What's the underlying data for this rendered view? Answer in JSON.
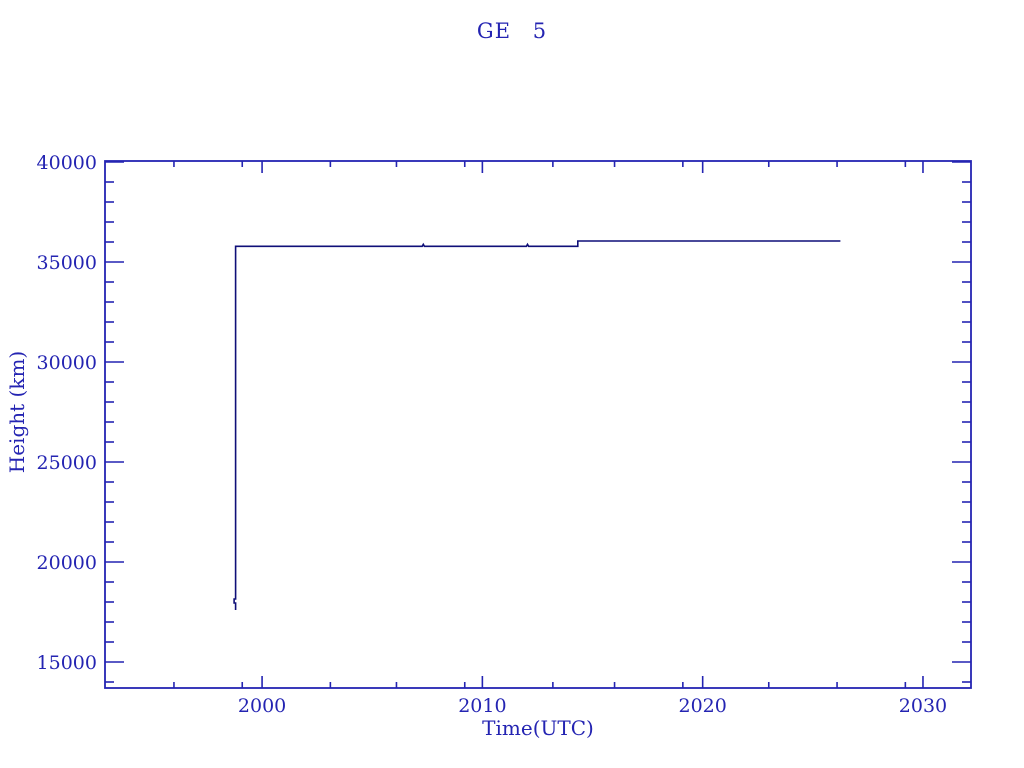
{
  "page": {
    "background": "#ffffff"
  },
  "chart_data": {
    "type": "line",
    "title": "GE 5",
    "xlabel": "Time(UTC)",
    "ylabel": "Height (km)",
    "grid": false,
    "legend": "none",
    "colors": {
      "axis": "#2424b2",
      "text": "#2424b2",
      "line": "#0f0f78",
      "background": "#ffffff"
    },
    "xlim": [
      1992.87,
      2032.18
    ],
    "ylim": [
      13700,
      40050
    ],
    "x_major_ticks": [
      2000,
      2010,
      2020,
      2030
    ],
    "x_minor_ticks": [
      1996.0,
      1999.1,
      2003.1,
      2006.1,
      2009.2,
      2013.2,
      2016.0,
      2019.1,
      2023.0,
      2026.1,
      2029.2
    ],
    "y_major_ticks": [
      15000,
      20000,
      25000,
      30000,
      35000,
      40000
    ],
    "y_minor_ticks": [
      14000,
      16000,
      17000,
      18000,
      19000,
      21000,
      22000,
      23000,
      24000,
      26000,
      27000,
      28000,
      29000,
      31000,
      32000,
      33000,
      34000,
      36000,
      37000,
      38000,
      39000
    ],
    "series": [
      {
        "name": "GE 5 height",
        "color": "#0f0f78",
        "points": [
          [
            1998.8,
            17600
          ],
          [
            1998.8,
            17950
          ],
          [
            1998.73,
            17950
          ],
          [
            1998.73,
            18150
          ],
          [
            1998.8,
            18150
          ],
          [
            1998.8,
            35786
          ],
          [
            2007.27,
            35786
          ],
          [
            2007.32,
            35880
          ],
          [
            2007.37,
            35786
          ],
          [
            2012.0,
            35786
          ],
          [
            2012.05,
            35880
          ],
          [
            2012.1,
            35786
          ],
          [
            2014.33,
            35786
          ],
          [
            2014.33,
            36050
          ],
          [
            2026.25,
            36050
          ]
        ]
      }
    ]
  }
}
